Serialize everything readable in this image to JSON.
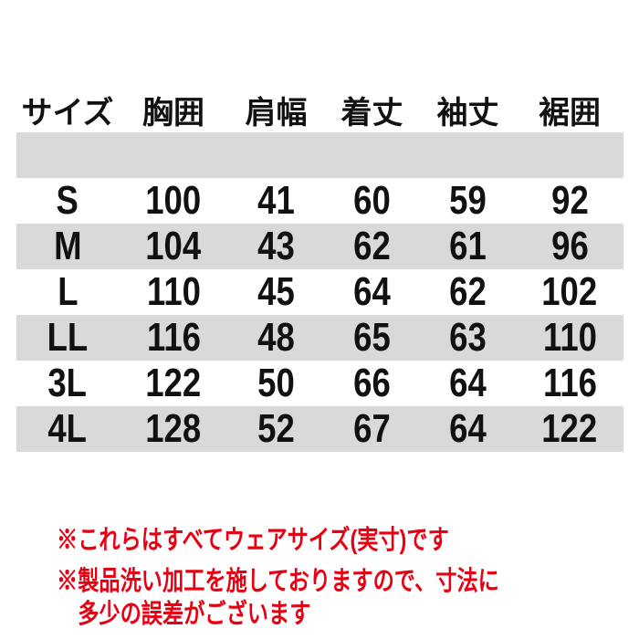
{
  "table": {
    "columns": [
      "サイズ",
      "胸囲",
      "肩幅",
      "着丈",
      "袖丈",
      "裾囲"
    ],
    "rows": [
      {
        "size": "S",
        "values": [
          "100",
          "41",
          "60",
          "59",
          "92"
        ]
      },
      {
        "size": "M",
        "values": [
          "104",
          "43",
          "62",
          "61",
          "96"
        ]
      },
      {
        "size": "L",
        "values": [
          "110",
          "45",
          "64",
          "62",
          "102"
        ]
      },
      {
        "size": "LL",
        "values": [
          "116",
          "48",
          "65",
          "63",
          "110"
        ]
      },
      {
        "size": "3L",
        "values": [
          "122",
          "50",
          "66",
          "64",
          "116"
        ]
      },
      {
        "size": "4L",
        "values": [
          "128",
          "52",
          "67",
          "64",
          "122"
        ]
      }
    ]
  },
  "notes": [
    {
      "text": "※これらはすべてウェアサイズ(実寸)です"
    },
    {
      "text": "※製品洗い加工を施しておりますので、寸法に"
    },
    {
      "text": "多少の誤差がございます"
    }
  ],
  "colors": {
    "stripe": "#d9d9d9",
    "note_red": "#e60012",
    "text": "#111111",
    "background": "#ffffff"
  }
}
